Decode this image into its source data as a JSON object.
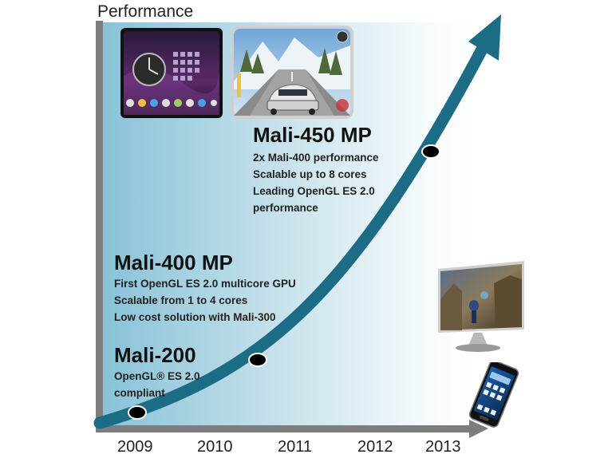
{
  "axis": {
    "y_label": "Performance",
    "x_ticks": [
      "2009",
      "2010",
      "2011",
      "2012",
      "2013"
    ]
  },
  "milestones": [
    {
      "id": "mali-200",
      "title": "Mali-200",
      "lines": [
        "OpenGL® ES 2.0",
        "compliant"
      ]
    },
    {
      "id": "mali-400",
      "title": "Mali-400 MP",
      "lines": [
        "First OpenGL ES 2.0 multicore GPU",
        "Scalable  from 1 to 4 cores",
        "Low cost solution with Mali-300"
      ]
    },
    {
      "id": "mali-450",
      "title": "Mali-450 MP",
      "lines": [
        "2x Mali-400 performance",
        "Scalable up to 8 cores",
        "Leading OpenGL ES 2.0",
        "performance"
      ]
    }
  ],
  "images": {
    "tablet_ui": "tablet-home-screen-image",
    "racing_game": "racing-game-screenshot",
    "tv": "smart-tv-game-image",
    "phone": "smartphone-image"
  },
  "colors": {
    "curve": "#1c6c86",
    "axis": "#7d7d7d",
    "background_left": "#88c2d8",
    "dot": "#000000"
  }
}
